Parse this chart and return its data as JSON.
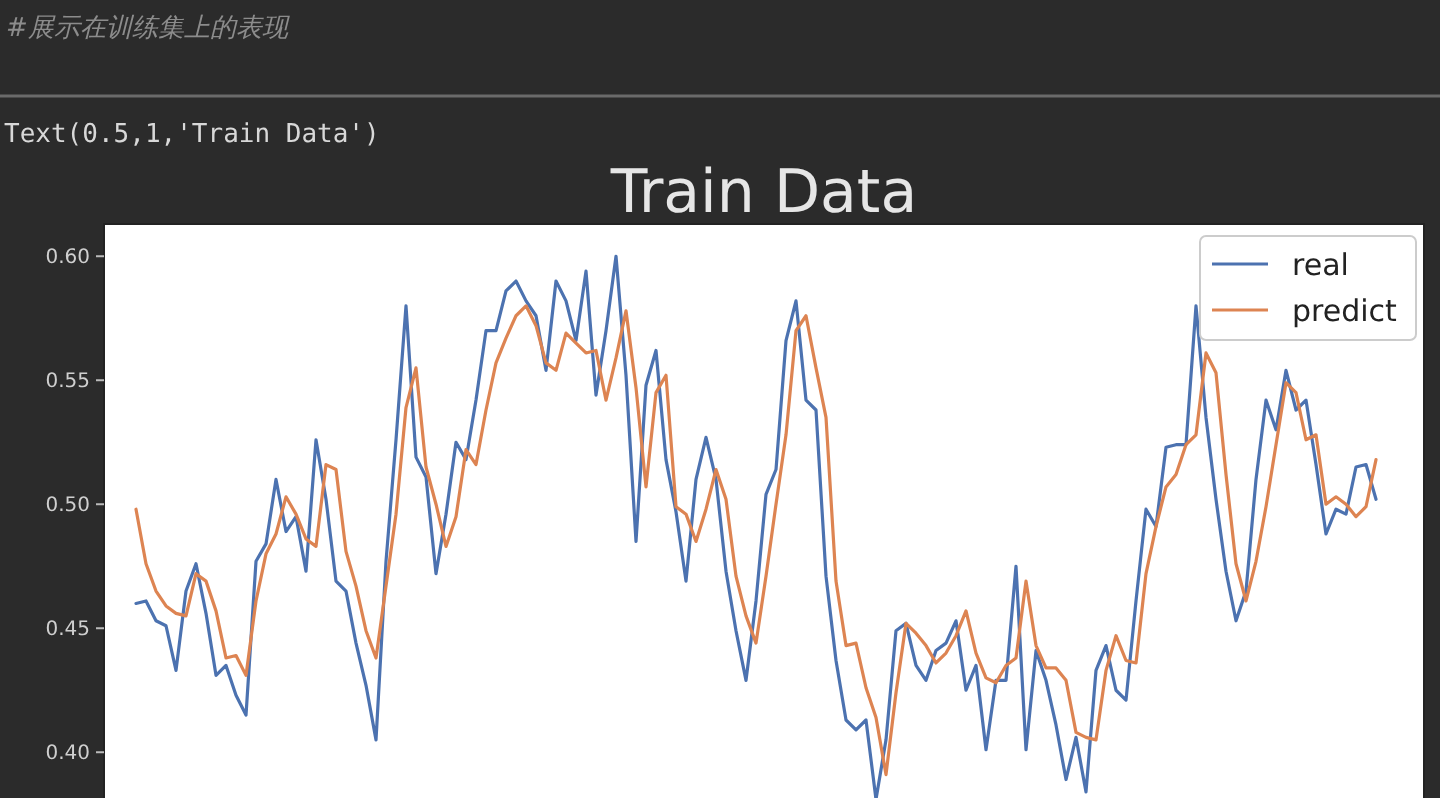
{
  "chart_data": {
    "type": "line",
    "title": "Train Data",
    "annotations": [
      "#展示在训练集上的表现",
      "Text(0.5,1,'Train Data')"
    ],
    "categories": [
      null,
      null,
      null,
      null,
      null,
      null,
      null,
      null,
      null,
      null,
      null,
      null,
      null,
      null,
      null,
      null,
      null,
      null,
      null,
      null,
      null,
      null,
      null,
      null,
      null,
      null,
      null,
      null,
      null,
      null,
      null,
      null,
      null,
      null,
      null,
      null,
      null,
      null,
      null,
      null,
      null,
      null,
      null,
      null,
      null,
      null,
      null,
      null,
      null,
      null,
      null,
      null,
      null,
      null,
      null,
      null,
      null,
      null,
      null,
      null,
      null,
      null,
      null,
      null,
      null,
      null,
      null,
      null,
      null,
      null,
      null,
      null,
      null,
      null,
      null,
      null,
      null,
      null,
      null,
      null,
      null,
      null,
      null,
      null,
      null,
      null,
      null,
      null,
      null,
      null,
      null,
      null,
      null,
      null,
      null,
      null,
      null,
      null,
      null,
      null,
      null,
      null,
      null,
      null,
      null,
      null,
      null,
      null,
      null,
      null,
      null,
      null,
      null,
      null,
      null,
      null,
      null,
      null,
      null,
      null,
      null,
      null,
      null,
      null,
      null
    ],
    "series": [
      {
        "name": "real",
        "color": "#4c72b0",
        "values": [
          0.46,
          0.461,
          0.453,
          0.451,
          0.433,
          0.465,
          0.476,
          0.456,
          0.431,
          0.435,
          0.423,
          0.415,
          0.477,
          0.484,
          0.51,
          0.489,
          0.495,
          0.473,
          0.526,
          0.502,
          0.469,
          0.465,
          0.444,
          0.427,
          0.405,
          0.477,
          0.526,
          0.58,
          0.519,
          0.511,
          0.472,
          0.496,
          0.525,
          0.518,
          0.542,
          0.57,
          0.57,
          0.586,
          0.59,
          0.582,
          0.576,
          0.554,
          0.59,
          0.582,
          0.566,
          0.594,
          0.544,
          0.57,
          0.6,
          0.552,
          0.485,
          0.548,
          0.562,
          0.518,
          0.497,
          0.469,
          0.51,
          0.527,
          0.51,
          0.473,
          0.449,
          0.429,
          0.461,
          0.504,
          0.514,
          0.566,
          0.582,
          0.542,
          0.538,
          0.471,
          0.437,
          0.413,
          0.409,
          0.413,
          0.381,
          0.405,
          0.449,
          0.452,
          0.435,
          0.429,
          0.441,
          0.444,
          0.453,
          0.425,
          0.435,
          0.401,
          0.429,
          0.429,
          0.475,
          0.401,
          0.441,
          0.429,
          0.411,
          0.389,
          0.406,
          0.384,
          0.433,
          0.443,
          0.425,
          0.421,
          0.461,
          0.498,
          0.491,
          0.523,
          0.524,
          0.524,
          0.58,
          0.535,
          0.502,
          0.473,
          0.453,
          0.465,
          0.51,
          0.542,
          0.53,
          0.554,
          0.538,
          0.542,
          0.516,
          0.488,
          0.498,
          0.496,
          0.515,
          0.516,
          0.502
        ]
      },
      {
        "name": "predict",
        "color": "#dd8452",
        "values": [
          0.498,
          0.476,
          0.465,
          0.459,
          0.456,
          0.455,
          0.472,
          0.469,
          0.457,
          0.438,
          0.439,
          0.431,
          0.461,
          0.48,
          0.488,
          0.503,
          0.496,
          0.486,
          0.483,
          0.516,
          0.514,
          0.481,
          0.467,
          0.449,
          0.438,
          0.467,
          0.496,
          0.539,
          0.555,
          0.515,
          0.5,
          0.483,
          0.495,
          0.522,
          0.516,
          0.538,
          0.557,
          0.567,
          0.576,
          0.58,
          0.572,
          0.557,
          0.554,
          0.569,
          0.565,
          0.561,
          0.562,
          0.542,
          0.559,
          0.578,
          0.547,
          0.507,
          0.545,
          0.552,
          0.499,
          0.496,
          0.485,
          0.498,
          0.514,
          0.502,
          0.471,
          0.455,
          0.444,
          0.471,
          0.5,
          0.528,
          0.57,
          0.576,
          0.555,
          0.535,
          0.469,
          0.443,
          0.444,
          0.426,
          0.414,
          0.391,
          0.424,
          0.452,
          0.448,
          0.443,
          0.436,
          0.44,
          0.447,
          0.457,
          0.44,
          0.43,
          0.428,
          0.435,
          0.438,
          0.469,
          0.443,
          0.434,
          0.434,
          0.429,
          0.408,
          0.406,
          0.405,
          0.433,
          0.447,
          0.437,
          0.436,
          0.472,
          0.491,
          0.507,
          0.512,
          0.524,
          0.528,
          0.561,
          0.553,
          0.512,
          0.476,
          0.461,
          0.477,
          0.499,
          0.524,
          0.549,
          0.545,
          0.526,
          0.528,
          0.5,
          0.503,
          0.5,
          0.495,
          0.499,
          0.518
        ]
      }
    ],
    "ylim": [
      0.37,
      0.613
    ],
    "yticks": [
      {
        "value": 0.4,
        "label": "0.40"
      },
      0.45,
      {
        "value": 0.5,
        "label": "0.50"
      },
      0.55,
      {
        "value": 0.6,
        "label": "0.60"
      }
    ],
    "legend": "top right"
  }
}
